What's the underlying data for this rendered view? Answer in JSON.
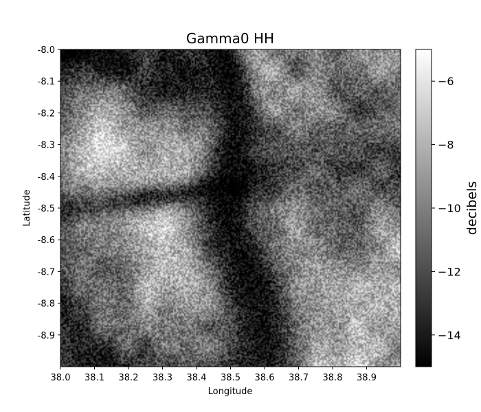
{
  "chart_data": {
    "type": "heatmap",
    "title": "Gamma0 HH",
    "xlabel": "Longitude",
    "ylabel": "Latitude",
    "xlim": [
      38.0,
      39.0
    ],
    "ylim": [
      -9.0,
      -8.0
    ],
    "x_ticks": [
      "38.0",
      "38.1",
      "38.2",
      "38.3",
      "38.4",
      "38.5",
      "38.6",
      "38.7",
      "38.8",
      "38.9"
    ],
    "y_ticks": [
      "-8.0",
      "-8.1",
      "-8.2",
      "-8.3",
      "-8.4",
      "-8.5",
      "-8.6",
      "-8.7",
      "-8.8",
      "-8.9"
    ],
    "colormap": "gray",
    "colorbar": {
      "label": "decibels",
      "range": [
        -15,
        -5
      ],
      "ticks": [
        "−6",
        "−8",
        "−10",
        "−12",
        "−14"
      ],
      "tick_values": [
        -6,
        -8,
        -10,
        -12,
        -14
      ],
      "low_color": "#000000",
      "high_color": "#ffffff"
    },
    "grid": false
  }
}
